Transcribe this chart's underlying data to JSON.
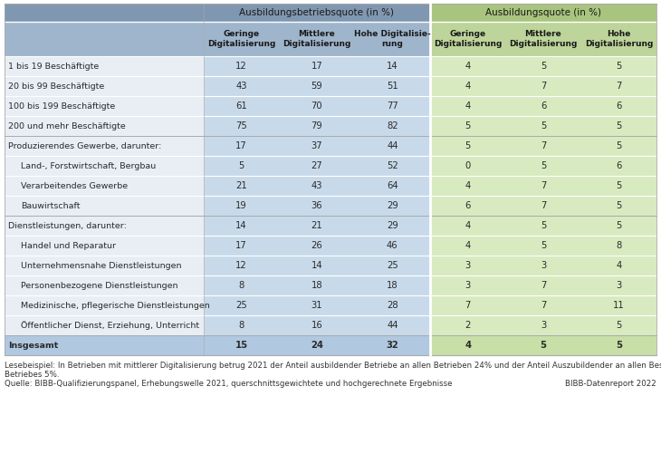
{
  "header_group1": "Ausbildungsbetriebsquote (in %)",
  "header_group2": "Ausbildungsquote (in %)",
  "col_headers": [
    "Geringe\nDigitalisierung",
    "Mittlere\nDigitalisierung",
    "Hohe Digitalisie-\nrung",
    "Geringe\nDigitalisierung",
    "Mittlere\nDigitalisierung",
    "Hohe\nDigitalisierung"
  ],
  "rows": [
    {
      "label": "1 bis 19 Beschäftigte",
      "values": [
        "12",
        "17",
        "14",
        "4",
        "5",
        "5"
      ],
      "indent": 0,
      "bold": false,
      "separator_above": false
    },
    {
      "label": "20 bis 99 Beschäftigte",
      "values": [
        "43",
        "59",
        "51",
        "4",
        "7",
        "7"
      ],
      "indent": 0,
      "bold": false,
      "separator_above": false
    },
    {
      "label": "100 bis 199 Beschäftigte",
      "values": [
        "61",
        "70",
        "77",
        "4",
        "6",
        "6"
      ],
      "indent": 0,
      "bold": false,
      "separator_above": false
    },
    {
      "label": "200 und mehr Beschäftigte",
      "values": [
        "75",
        "79",
        "82",
        "5",
        "5",
        "5"
      ],
      "indent": 0,
      "bold": false,
      "separator_above": false
    },
    {
      "label": "Produzierendes Gewerbe, darunter:",
      "values": [
        "17",
        "37",
        "44",
        "5",
        "7",
        "5"
      ],
      "indent": 0,
      "bold": false,
      "separator_above": true
    },
    {
      "label": "Land-, Forstwirtschaft, Bergbau",
      "values": [
        "5",
        "27",
        "52",
        "0",
        "5",
        "6"
      ],
      "indent": 1,
      "bold": false,
      "separator_above": false
    },
    {
      "label": "Verarbeitendes Gewerbe",
      "values": [
        "21",
        "43",
        "64",
        "4",
        "7",
        "5"
      ],
      "indent": 1,
      "bold": false,
      "separator_above": false
    },
    {
      "label": "Bauwirtschaft",
      "values": [
        "19",
        "36",
        "29",
        "6",
        "7",
        "5"
      ],
      "indent": 1,
      "bold": false,
      "separator_above": false
    },
    {
      "label": "Dienstleistungen, darunter:",
      "values": [
        "14",
        "21",
        "29",
        "4",
        "5",
        "5"
      ],
      "indent": 0,
      "bold": false,
      "separator_above": true
    },
    {
      "label": "Handel und Reparatur",
      "values": [
        "17",
        "26",
        "46",
        "4",
        "5",
        "8"
      ],
      "indent": 1,
      "bold": false,
      "separator_above": false
    },
    {
      "label": "Unternehmensnahe Dienstleistungen",
      "values": [
        "12",
        "14",
        "25",
        "3",
        "3",
        "4"
      ],
      "indent": 1,
      "bold": false,
      "separator_above": false
    },
    {
      "label": "Personenbezogene Dienstleistungen",
      "values": [
        "8",
        "18",
        "18",
        "3",
        "7",
        "3"
      ],
      "indent": 1,
      "bold": false,
      "separator_above": false
    },
    {
      "label": "Medizinische, pflegerische Dienstleistungen",
      "values": [
        "25",
        "31",
        "28",
        "7",
        "7",
        "11"
      ],
      "indent": 1,
      "bold": false,
      "separator_above": false
    },
    {
      "label": "Öffentlicher Dienst, Erziehung, Unterricht",
      "values": [
        "8",
        "16",
        "44",
        "2",
        "3",
        "5"
      ],
      "indent": 1,
      "bold": false,
      "separator_above": false
    },
    {
      "label": "Insgesamt",
      "values": [
        "15",
        "24",
        "32",
        "4",
        "5",
        "5"
      ],
      "indent": 0,
      "bold": true,
      "separator_above": true
    }
  ],
  "footer_line1": "Lesebeispiel: In Betrieben mit mittlerer Digitalisierung betrug 2021 der Anteil ausbildender Betriebe an allen Betrieben 24% und der Anteil Auszubildender an allen Beschäftigten des",
  "footer_line2": "Betriebes 5%.",
  "source_text": "Quelle: BIBB-Qualifizierungspanel, Erhebungswelle 2021, querschnittsgewichtete und hochgerechnete Ergebnisse",
  "source_right": "BIBB-Datenreport 2022",
  "color_header_left_bg": "#8097b1",
  "color_header_right_bg": "#a8c47e",
  "color_subheader_left_bg": "#9fb5cc",
  "color_subheader_right_bg": "#bdd49a",
  "color_data_left": "#c8daea",
  "color_data_right": "#d8eac0",
  "color_label_bg": "#e8eef4",
  "color_total_left": "#b0c8e0",
  "color_total_right": "#c8dfa8",
  "color_total_label": "#c8daea",
  "color_sep_line": "#aaaaaa",
  "color_text": "#2a2a2a",
  "color_text_header": "#1a1a1a"
}
